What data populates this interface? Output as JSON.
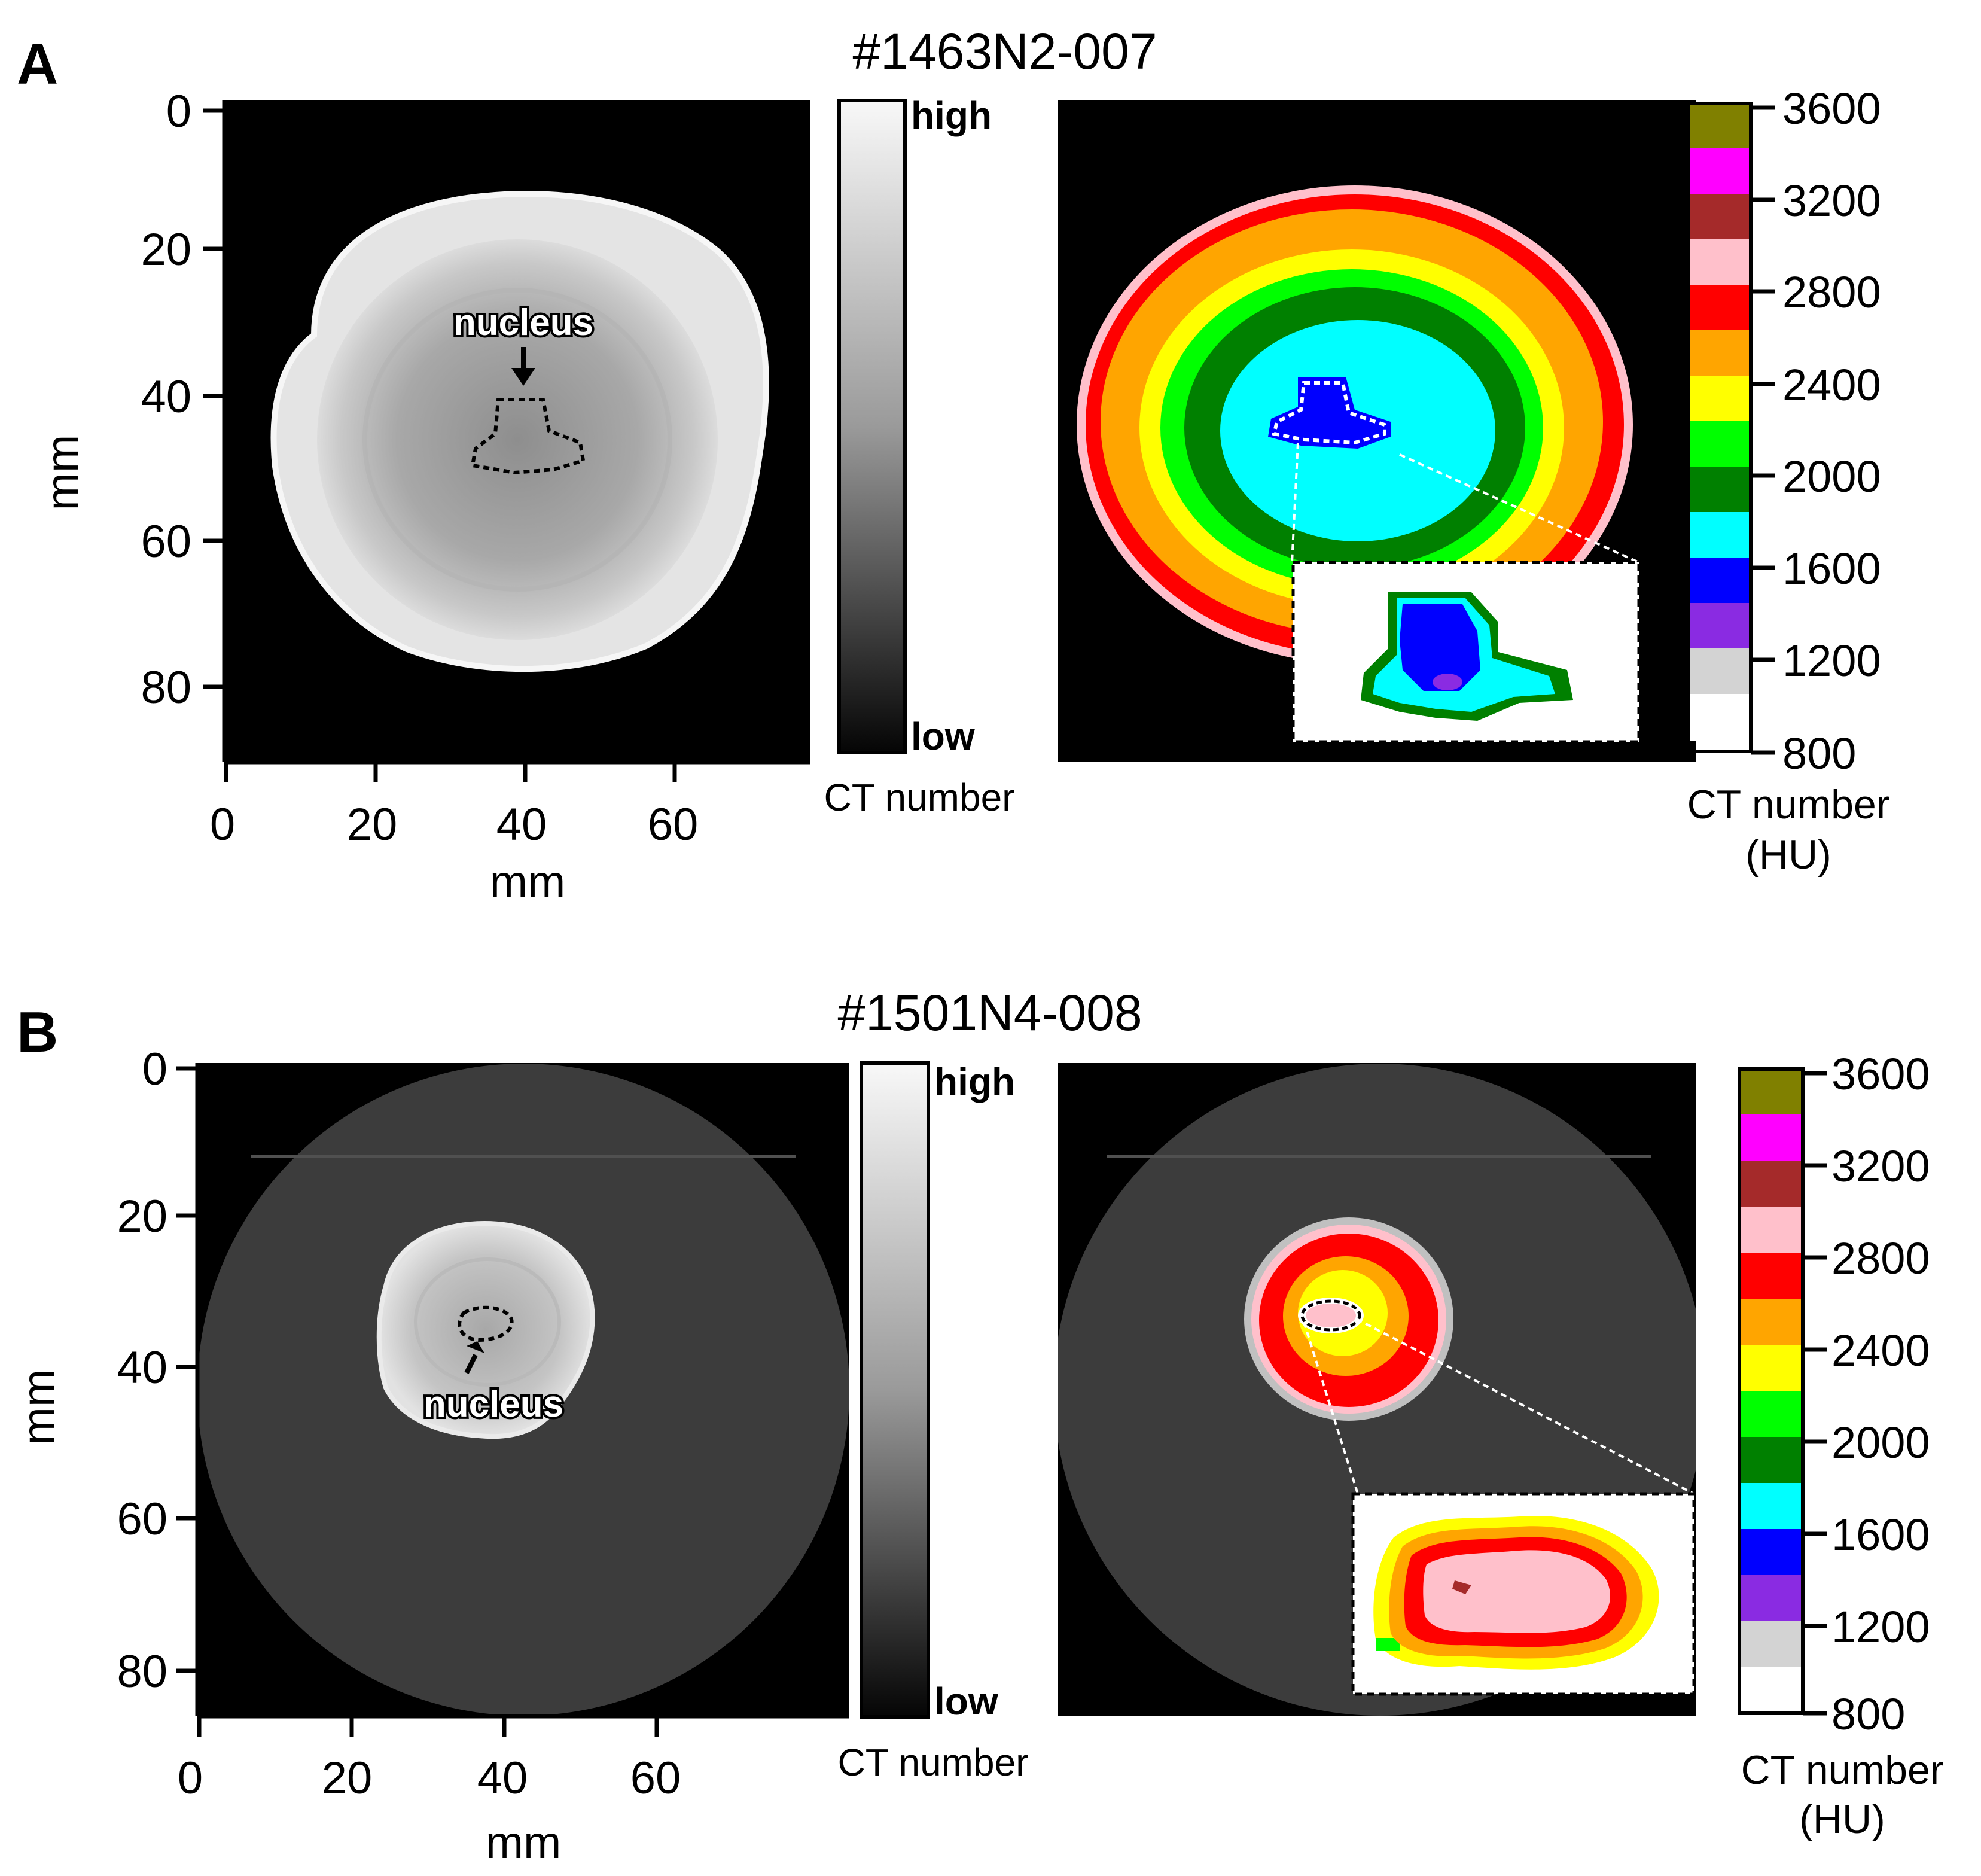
{
  "panels": [
    {
      "letter": "A",
      "title": "#1463N2-007",
      "nucleus_label": "nucleus",
      "y_axis_label": "mm",
      "y_ticks": [
        "0",
        "20",
        "40",
        "60",
        "80"
      ],
      "x_axis_label": "mm",
      "x_ticks": [
        "0",
        "20",
        "40",
        "60"
      ],
      "gray_bar": {
        "high_label": "high",
        "low_label": "low",
        "caption": "CT number"
      },
      "color_bar": {
        "ticks": [
          "3600",
          "3200",
          "2800",
          "2400",
          "2000",
          "1600",
          "1200",
          "800"
        ],
        "caption_line1": "CT number",
        "caption_line2": "(HU)"
      }
    },
    {
      "letter": "B",
      "title": "#1501N4-008",
      "nucleus_label": "nucleus",
      "y_axis_label": "mm",
      "y_ticks": [
        "0",
        "20",
        "40",
        "60",
        "80"
      ],
      "x_axis_label": "mm",
      "x_ticks": [
        "0",
        "20",
        "40",
        "60"
      ],
      "gray_bar": {
        "high_label": "high",
        "low_label": "low",
        "caption": "CT number"
      },
      "color_bar": {
        "ticks": [
          "3600",
          "3200",
          "2800",
          "2400",
          "2000",
          "1600",
          "1200",
          "800"
        ],
        "caption_line1": "CT number",
        "caption_line2": "(HU)"
      }
    }
  ],
  "colormap": [
    "#808000",
    "#ff00ff",
    "#a52a2a",
    "#ffc0cb",
    "#ff0000",
    "#ffa500",
    "#ffff00",
    "#00ff00",
    "#008000",
    "#00ffff",
    "#0000ff",
    "#8a2be2",
    "#d3d3d3",
    "#ffffff"
  ]
}
